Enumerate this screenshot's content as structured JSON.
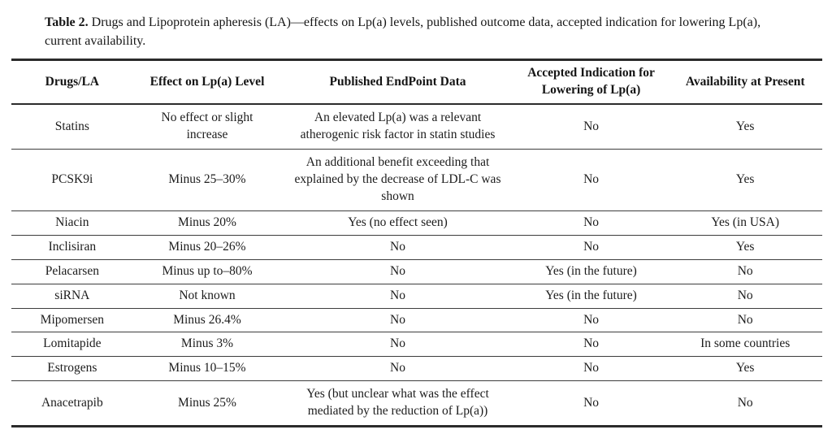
{
  "caption": {
    "label": "Table 2.",
    "text": " Drugs and Lipoprotein apheresis (LA)—effects on Lp(a) levels, published outcome data, accepted indication for lowering Lp(a), current availability."
  },
  "table": {
    "columns": [
      "Drugs/LA",
      "Effect on Lp(a) Level",
      "Published EndPoint Data",
      "Accepted Indication for Lowering of Lp(a)",
      "Availability at Present"
    ],
    "rows": [
      [
        "Statins",
        "No effect or slight increase",
        "An elevated Lp(a) was a relevant atherogenic risk factor in statin studies",
        "No",
        "Yes"
      ],
      [
        "PCSK9i",
        "Minus 25–30%",
        "An additional benefit exceeding that explained by the decrease of LDL-C was shown",
        "No",
        "Yes"
      ],
      [
        "Niacin",
        "Minus 20%",
        "Yes (no effect seen)",
        "No",
        "Yes (in USA)"
      ],
      [
        "Inclisiran",
        "Minus 20–26%",
        "No",
        "No",
        "Yes"
      ],
      [
        "Pelacarsen",
        "Minus up to–80%",
        "No",
        "Yes (in the future)",
        "No"
      ],
      [
        "siRNA",
        "Not known",
        "No",
        "Yes (in the future)",
        "No"
      ],
      [
        "Mipomersen",
        "Minus 26.4%",
        "No",
        "No",
        "No"
      ],
      [
        "Lomitapide",
        "Minus 3%",
        "No",
        "No",
        "In some countries"
      ],
      [
        "Estrogens",
        "Minus 10–15%",
        "No",
        "No",
        "Yes"
      ],
      [
        "Anacetrapib",
        "Minus 25%",
        "Yes (but unclear what was the effect mediated by the reduction of Lp(a))",
        "No",
        "No"
      ]
    ],
    "colors": {
      "rule": "#2b2b2b",
      "text": "#1a1a1a",
      "background": "#ffffff"
    }
  }
}
